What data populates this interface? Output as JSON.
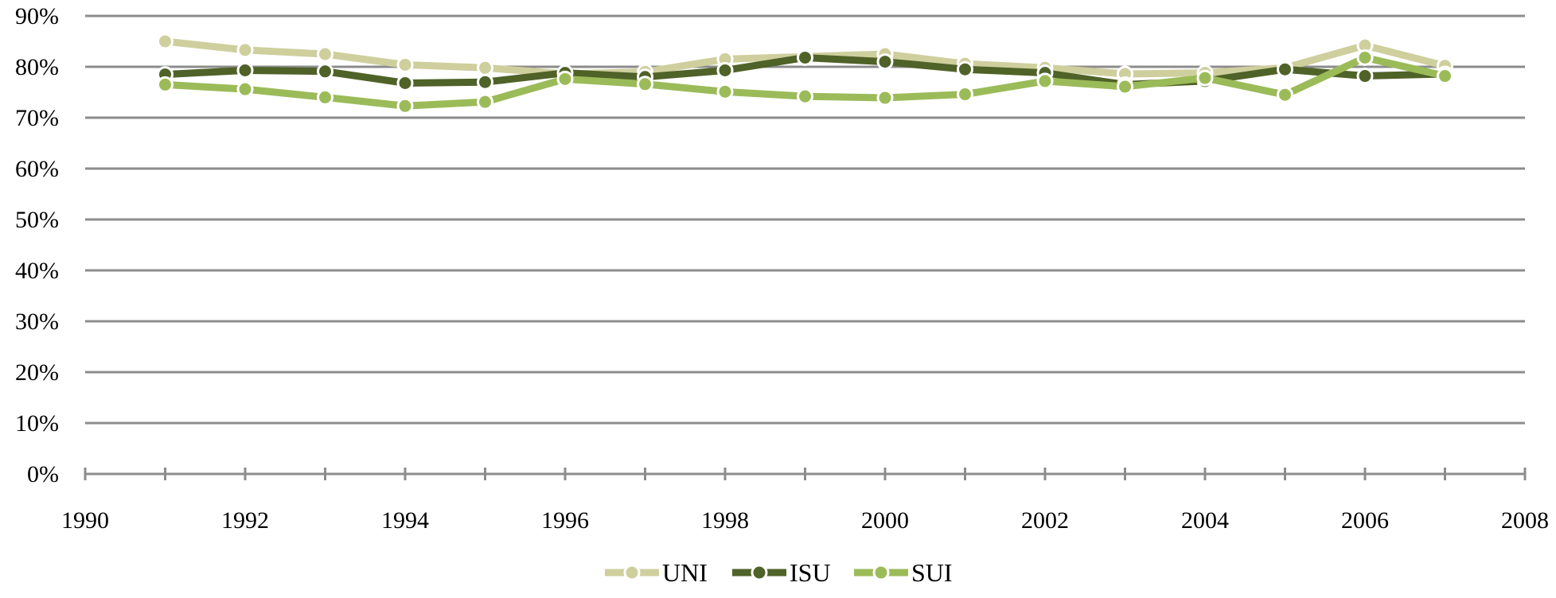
{
  "chart_data": {
    "type": "line",
    "title": "",
    "xlabel": "",
    "ylabel": "",
    "xlim": [
      1990,
      2008
    ],
    "ylim": [
      0,
      90
    ],
    "x_ticks": [
      "1990",
      "1992",
      "1994",
      "1996",
      "1998",
      "2000",
      "2002",
      "2004",
      "2006",
      "2008"
    ],
    "y_ticks": [
      "0%",
      "10%",
      "20%",
      "30%",
      "40%",
      "50%",
      "60%",
      "70%",
      "80%",
      "90%"
    ],
    "grid": true,
    "legend_position": "bottom-center",
    "x": [
      1991,
      1992,
      1993,
      1994,
      1995,
      1996,
      1997,
      1998,
      1999,
      2000,
      2001,
      2002,
      2003,
      2004,
      2005,
      2006,
      2007
    ],
    "series": [
      {
        "name": "UNI",
        "color": "#cfcf9e",
        "values": [
          85,
          83.3,
          82.5,
          80.4,
          79.8,
          78.6,
          79.0,
          81.5,
          82.0,
          82.5,
          80.6,
          79.8,
          78.6,
          78.8,
          79.8,
          84.2,
          80.2
        ]
      },
      {
        "name": "ISU",
        "color": "#4f6228",
        "values": [
          78.5,
          79.3,
          79.1,
          76.8,
          77.0,
          78.8,
          78.0,
          79.3,
          81.8,
          81.0,
          79.5,
          78.8,
          76.5,
          77.2,
          79.5,
          78.2,
          78.6
        ]
      },
      {
        "name": "SUI",
        "color": "#9bbb59",
        "values": [
          76.5,
          75.6,
          74.0,
          72.3,
          73.1,
          77.6,
          76.6,
          75.1,
          74.2,
          73.9,
          74.6,
          77.2,
          76.1,
          77.8,
          74.5,
          81.8,
          78.2
        ]
      }
    ]
  }
}
